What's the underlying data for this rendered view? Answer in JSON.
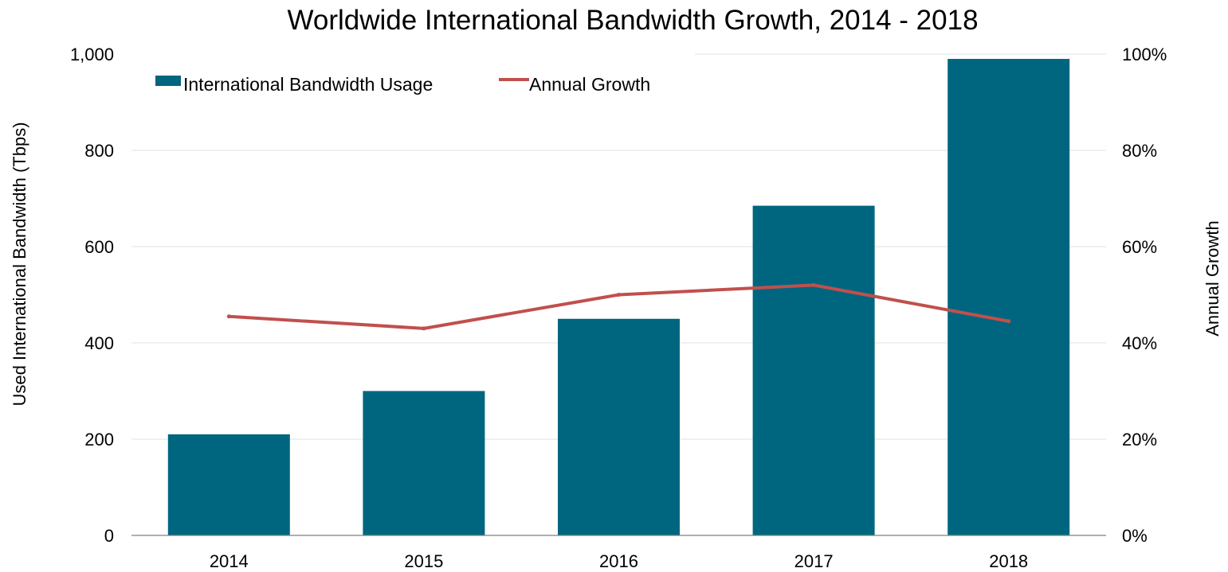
{
  "chart_data": {
    "type": "bar",
    "title": "Worldwide International Bandwidth Growth, 2014 - 2018",
    "categories": [
      "2014",
      "2015",
      "2016",
      "2017",
      "2018"
    ],
    "series": [
      {
        "name": "International Bandwidth Usage",
        "kind": "bar",
        "axis": "left",
        "color": "#00667f",
        "values": [
          210,
          300,
          450,
          685,
          990
        ]
      },
      {
        "name": "Annual Growth",
        "kind": "line",
        "axis": "right",
        "color": "#c0504d",
        "values": [
          45.5,
          43,
          50,
          52,
          44.5
        ]
      }
    ],
    "y_left": {
      "label": "Used International Bandwidth (Tbps)",
      "range": [
        0,
        1000
      ],
      "ticks": [
        0,
        200,
        400,
        600,
        800,
        1000
      ],
      "tick_labels": [
        "0",
        "200",
        "400",
        "600",
        "800",
        "1,000"
      ]
    },
    "y_right": {
      "label": "Annual Growth",
      "range": [
        0,
        100
      ],
      "ticks": [
        0,
        20,
        40,
        60,
        80,
        100
      ],
      "tick_labels": [
        "0%",
        "20%",
        "40%",
        "60%",
        "80%",
        "100%"
      ]
    },
    "grid": true,
    "legend_position": "top-left"
  }
}
